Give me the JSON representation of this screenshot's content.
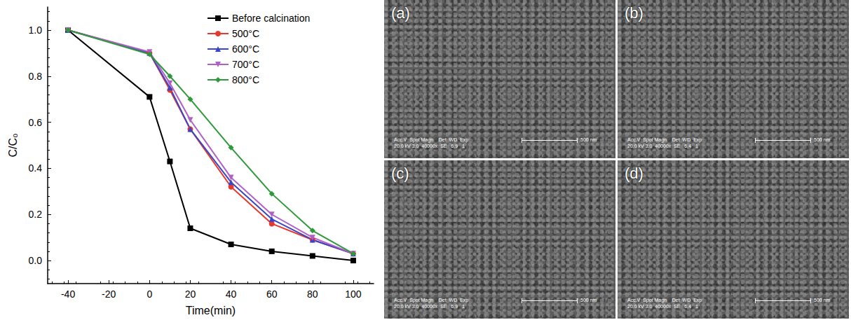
{
  "chart_data": {
    "type": "line",
    "x_label": "Time(min)",
    "y_label": "C/C₀",
    "x": [
      -40,
      0,
      10,
      20,
      40,
      60,
      80,
      100
    ],
    "series": [
      {
        "name": "Before calcination",
        "color": "#000000",
        "marker": "square",
        "values": [
          1.0,
          0.71,
          0.43,
          0.14,
          0.07,
          0.04,
          0.02,
          0.0
        ]
      },
      {
        "name": "500°C",
        "color": "#e8382b",
        "marker": "circle",
        "values": [
          1.0,
          0.9,
          0.74,
          0.57,
          0.32,
          0.16,
          0.09,
          0.03
        ]
      },
      {
        "name": "600°C",
        "color": "#3a46c8",
        "marker": "triangle",
        "values": [
          1.0,
          0.9,
          0.75,
          0.57,
          0.34,
          0.18,
          0.09,
          0.03
        ]
      },
      {
        "name": "700°C",
        "color": "#b15fc8",
        "marker": "triangle_down",
        "values": [
          1.0,
          0.905,
          0.77,
          0.61,
          0.36,
          0.2,
          0.1,
          0.03
        ]
      },
      {
        "name": "800°C",
        "color": "#2c9a3a",
        "marker": "diamond",
        "values": [
          1.0,
          0.895,
          0.8,
          0.7,
          0.49,
          0.29,
          0.13,
          0.03
        ]
      }
    ],
    "xlim": [
      -50,
      110
    ],
    "xticks": [
      -40,
      -20,
      0,
      20,
      40,
      60,
      80,
      100
    ],
    "ylim": [
      -0.1,
      1.1
    ],
    "yticks": [
      {
        "value": 0,
        "label": "0.0"
      },
      {
        "value": 0.2,
        "label": "0.2"
      },
      {
        "value": 0.4,
        "label": "0.4"
      },
      {
        "value": 0.6,
        "label": "0.6"
      },
      {
        "value": 0.8,
        "label": "0.8"
      },
      {
        "value": 1.0,
        "label": "1.0"
      }
    ],
    "grid": false,
    "legend": "upper right"
  },
  "sem_images": [
    {
      "label": "(a)",
      "info_header": "Acc.V  Spot Magn    Det  WD  Exp",
      "info_values": "20.0 kV 3.0  40000x  SE   6.9   1",
      "scale_bar": "500 nm"
    },
    {
      "label": "(b)",
      "info_header": "Acc.V  Spot Magn    Det  WD  Exp",
      "info_values": "20.0 kV 3.0  40000x  SE   6.4   1",
      "scale_bar": "500 nm"
    },
    {
      "label": "(c)",
      "info_header": "Acc.V  Spot Magn    Det  WD  Exp",
      "info_values": "20.0 kV 3.0  40000x  SE   6.9   1",
      "scale_bar": "500 nm"
    },
    {
      "label": "(d)",
      "info_header": "Acc.V  Spot Magn    Det  WD  Exp",
      "info_values": "20.0 kV 3.0  40000x  SE   6.4   1",
      "scale_bar": "500 nm"
    }
  ]
}
